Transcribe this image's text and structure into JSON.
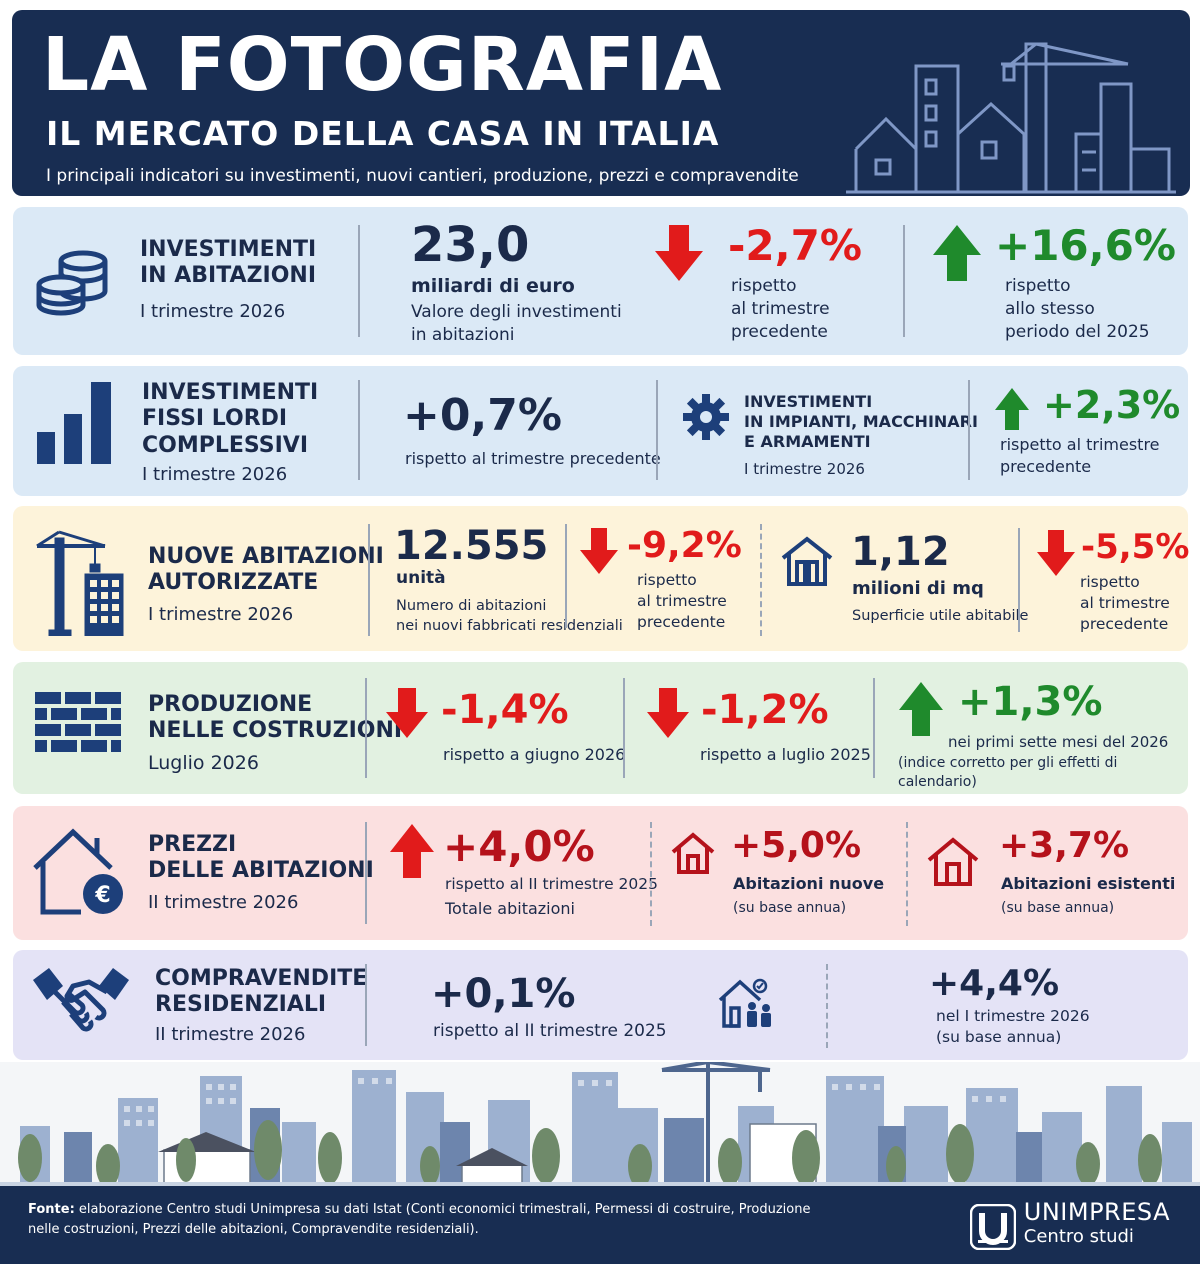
{
  "header": {
    "title": "LA FOTOGRAFIA",
    "subtitle": "IL MERCATO DELLA CASA IN ITALIA",
    "description": "I principali indicatori su investimenti, nuovi cantieri, produzione, prezzi e compravendite"
  },
  "sections": {
    "investimenti": {
      "title_1": "INVESTIMENTI",
      "title_2": "IN ABITAZIONI",
      "period": "I trimestre 2026",
      "value": "23,0",
      "unit": "miliardi di euro",
      "desc_1": "Valore degli investimenti",
      "desc_2": "in abitazioni",
      "change_1": "-2,7%",
      "change_1_l1": "rispetto",
      "change_1_l2": "al trimestre",
      "change_1_l3": "precedente",
      "change_2": "+16,6%",
      "change_2_l1": "rispetto",
      "change_2_l2": "allo stesso",
      "change_2_l3": "periodo del 2025"
    },
    "fissi": {
      "title_1": "INVESTIMENTI",
      "title_2": "FISSI LORDI",
      "title_3": "COMPLESSIVI",
      "period": "I trimestre 2026",
      "value": "+0,7%",
      "desc": "rispetto al trimestre precedente",
      "sub_title_1": "INVESTIMENTI",
      "sub_title_2": "IN IMPIANTI, MACCHINARI",
      "sub_title_3": "E ARMAMENTI",
      "sub_period": "I trimestre 2026",
      "sub_value": "+2,3%",
      "sub_desc_1": "rispetto al trimestre",
      "sub_desc_2": "precedente"
    },
    "nuove": {
      "title_1": "NUOVE ABITAZIONI",
      "title_2": "AUTORIZZATE",
      "period": "I trimestre 2026",
      "value": "12.555",
      "unit": "unità",
      "desc_1": "Numero di abitazioni",
      "desc_2": "nei nuovi fabbricati residenziali",
      "change_1": "-9,2%",
      "change_1_l1": "rispetto",
      "change_1_l2": "al trimestre",
      "change_1_l3": "precedente",
      "value_2": "1,12",
      "unit_2": "milioni di mq",
      "desc_3": "Superficie utile abitabile",
      "change_2": "-5,5%",
      "change_2_l1": "rispetto",
      "change_2_l2": "al trimestre",
      "change_2_l3": "precedente"
    },
    "produzione": {
      "title_1": "PRODUZIONE",
      "title_2": "NELLE COSTRUZIONI",
      "period": "Luglio 2026",
      "change_1": "-1,4%",
      "change_1_desc": "rispetto a giugno 2026",
      "change_2": "-1,2%",
      "change_2_desc": "rispetto a luglio 2025",
      "change_3": "+1,3%",
      "change_3_desc_1": "nei primi sette mesi del 2026",
      "change_3_desc_2": "(indice corretto per gli effetti di calendario)"
    },
    "prezzi": {
      "title_1": "PREZZI",
      "title_2": "DELLE ABITAZIONI",
      "period": "II trimestre 2026",
      "change_1": "+4,0%",
      "change_1_l1": "rispetto al II trimestre 2025",
      "change_1_l2": "Totale abitazioni",
      "change_2": "+5,0%",
      "change_2_l1": "Abitazioni nuove",
      "change_2_l2": "(su base annua)",
      "change_3": "+3,7%",
      "change_3_l1": "Abitazioni esistenti",
      "change_3_l2": "(su base annua)",
      "euro": "€"
    },
    "compravendite": {
      "title_1": "COMPRAVENDITE",
      "title_2": "RESIDENZIALI",
      "period": "II trimestre 2026",
      "change_1": "+0,1%",
      "change_1_desc": "rispetto al II trimestre 2025",
      "change_2": "+4,4%",
      "change_2_l1": "nel I trimestre 2026",
      "change_2_l2": "(su base annua)"
    }
  },
  "footer": {
    "source_label": "Fonte:",
    "source_text": "elaborazione Centro studi Unimpresa su dati Istat (Conti economici trimestrali, Permessi di costruire, Produzione nelle costruzioni, Prezzi delle abitazioni, Compravendite residenziali).",
    "logo_name": "UNIMPRESA",
    "logo_sub": "Centro studi"
  },
  "colors": {
    "navy": "#182d52",
    "red": "#e11b1b",
    "green": "#1f8a2c",
    "row_blue": "#dbe9f6",
    "row_yellow": "#fdf3da",
    "row_green": "#e2f1e1",
    "row_red": "#fbe0e0",
    "row_violet": "#e4e3f6"
  }
}
